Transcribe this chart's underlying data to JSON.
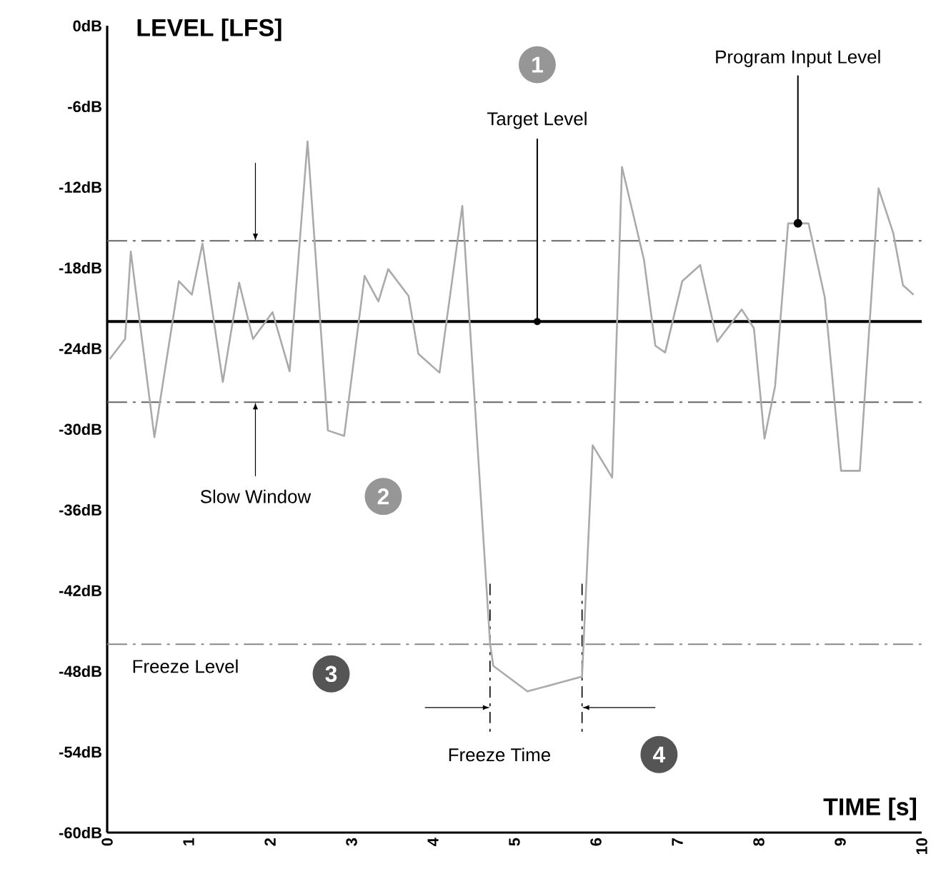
{
  "chart_data": {
    "type": "line",
    "xlabel": "TIME [s]",
    "ylabel": "LEVEL [LFS]",
    "xlim": [
      0,
      10
    ],
    "ylim": [
      -60,
      0
    ],
    "xticks": [
      0,
      1,
      2,
      3,
      4,
      5,
      6,
      7,
      8,
      9,
      10
    ],
    "yticks": [
      {
        "value": 0,
        "label": "0dB"
      },
      {
        "value": -6,
        "label": "-6dB"
      },
      {
        "value": -12,
        "label": "-12dB"
      },
      {
        "value": -18,
        "label": "-18dB"
      },
      {
        "value": -24,
        "label": "-24dB"
      },
      {
        "value": -30,
        "label": "-30dB"
      },
      {
        "value": -36,
        "label": "-36dB"
      },
      {
        "value": -42,
        "label": "-42dB"
      },
      {
        "value": -48,
        "label": "-48dB"
      },
      {
        "value": -54,
        "label": "-54dB"
      },
      {
        "value": -60,
        "label": "-60dB"
      }
    ],
    "series": [
      {
        "color": "#aaaaaa",
        "x": [
          0.03,
          0.22,
          0.29,
          0.58,
          0.88,
          1.04,
          1.17,
          1.42,
          1.62,
          1.79,
          2.03,
          2.24,
          2.46,
          2.71,
          2.91,
          3.16,
          3.33,
          3.45,
          3.7,
          3.82,
          4.08,
          4.36,
          4.7,
          4.74,
          5.16,
          5.83,
          5.96,
          6.2,
          6.32,
          6.59,
          6.73,
          6.85,
          7.06,
          7.28,
          7.49,
          7.79,
          7.94,
          8.07,
          8.2,
          8.36,
          8.61,
          8.81,
          9.01,
          9.24,
          9.47,
          9.65,
          9.77,
          9.9
        ],
        "values": [
          -24.8,
          -23.3,
          -16.8,
          -30.6,
          -19.0,
          -20.0,
          -16.2,
          -26.5,
          -19.1,
          -23.3,
          -21.3,
          -25.7,
          -8.6,
          -30.1,
          -30.5,
          -18.6,
          -20.5,
          -18.1,
          -20.1,
          -24.4,
          -25.8,
          -13.4,
          -45.9,
          -47.6,
          -49.5,
          -48.4,
          -31.2,
          -33.6,
          -10.5,
          -17.4,
          -23.8,
          -24.3,
          -19.0,
          -17.8,
          -23.5,
          -21.1,
          -22.5,
          -30.7,
          -26.8,
          -14.7,
          -14.7,
          -20.2,
          -33.1,
          -33.1,
          -12.1,
          -15.4,
          -19.3,
          -20.0
        ]
      }
    ],
    "ref_lines": [
      {
        "axis": "y",
        "value": -22,
        "color": "#000000",
        "line_style": "solid"
      },
      {
        "axis": "y",
        "value": -16,
        "color": "#666666",
        "line_style": "dashdot"
      },
      {
        "axis": "y",
        "value": -28,
        "color": "#666666",
        "line_style": "dashdot"
      },
      {
        "axis": "y",
        "value": -46,
        "color": "#888888",
        "line_style": "dashdot",
        "label": "Freeze Level"
      },
      {
        "axis": "x",
        "value": 4.7,
        "color": "#000000",
        "line_style": "dashdot"
      },
      {
        "axis": "x",
        "value": 5.83,
        "color": "#000000",
        "line_style": "dashdot"
      }
    ],
    "annotations": [
      {
        "text": "Target Level",
        "x": 5.28,
        "y": -22
      },
      {
        "text": "Program Input Level",
        "x": 8.48,
        "y": -14.7
      },
      {
        "text": "Slow Window",
        "x": 1.82,
        "y": -28
      },
      "Freeze Time",
      "1",
      "2",
      "3",
      "4"
    ]
  }
}
